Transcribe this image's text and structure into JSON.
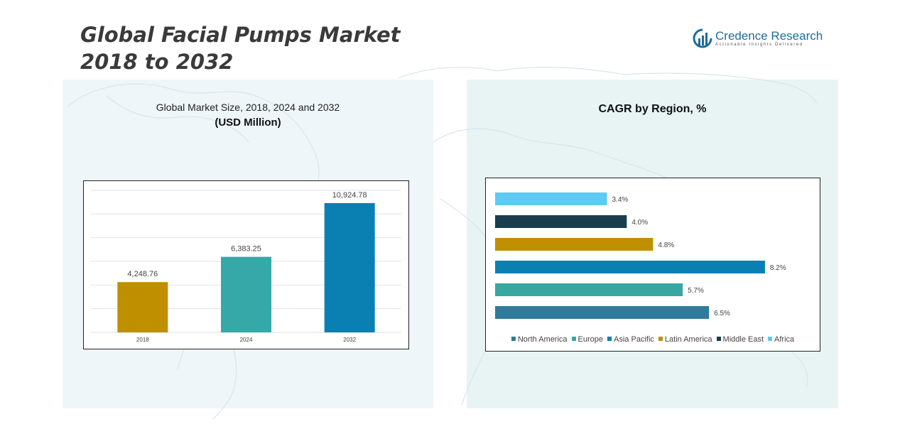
{
  "header": {
    "title_line1": "Global Facial Pumps Market",
    "title_line2": "2018 to 2032"
  },
  "logo": {
    "name": "Credence Research",
    "tagline": "Actionable Insights Delivered"
  },
  "left_panel": {
    "subtitle": "Global Market Size, 2018, 2024 and 2032",
    "unit": "(USD Million)"
  },
  "right_panel": {
    "title": "CAGR by Region, %"
  },
  "chart_data": [
    {
      "type": "bar",
      "orientation": "vertical",
      "title": "Global Market Size, 2018, 2024 and 2032",
      "ylabel": "(USD Million)",
      "categories": [
        "2018",
        "2024",
        "2032"
      ],
      "values": [
        4248.76,
        6383.25,
        10924.78
      ],
      "value_labels": [
        "4,248.76",
        "6,383.25",
        "10,924.78"
      ],
      "colors": [
        "#bf8f00",
        "#36a8a8",
        "#0a80b2"
      ],
      "ylim": [
        0,
        12000
      ],
      "grid": true,
      "legend": "none"
    },
    {
      "type": "bar",
      "orientation": "horizontal",
      "title": "CAGR by Region, %",
      "series": [
        {
          "name": "North America",
          "value": 6.5,
          "label": "6.5%",
          "color": "#2f7b9b"
        },
        {
          "name": "Europe",
          "value": 5.7,
          "label": "5.7%",
          "color": "#39a6a1"
        },
        {
          "name": "Asia Pacific",
          "value": 8.2,
          "label": "8.2%",
          "color": "#0a80b2"
        },
        {
          "name": "Latin America",
          "value": 4.8,
          "label": "4.8%",
          "color": "#bf8f00"
        },
        {
          "name": "Middle East",
          "value": 4.0,
          "label": "4.0%",
          "color": "#1a3d50"
        },
        {
          "name": "Africa",
          "value": 3.4,
          "label": "3.4%",
          "color": "#5ecbf2"
        }
      ],
      "xlim": [
        0,
        9
      ],
      "grid": false,
      "legend": "bottom"
    }
  ]
}
